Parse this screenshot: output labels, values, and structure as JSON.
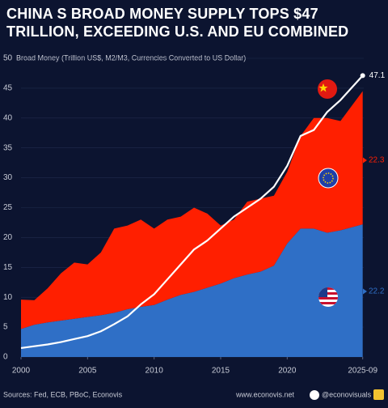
{
  "chart_data": {
    "type": "area",
    "title": "CHINA S BROAD MONEY SUPPLY TOPS $47 TRILLION, EXCEEDING U.S. AND EU COMBINED",
    "subtitle": "Broad Money (Trillion US$, M2/M3, Currencies Converted to US Dollar)",
    "source": "Sources: Fed, ECB, PBoC, Econovis",
    "website": "www.econovis.net",
    "handle": "@econovisuals",
    "x": [
      2000,
      2001,
      2002,
      2003,
      2004,
      2005,
      2006,
      2007,
      2008,
      2009,
      2010,
      2011,
      2012,
      2013,
      2014,
      2015,
      2016,
      2017,
      2018,
      2019,
      2020,
      2021,
      2022,
      2023,
      2024,
      2025.67
    ],
    "series": [
      {
        "type": "area",
        "color": "#2f6fc6",
        "values": [
          4.7,
          5.4,
          5.8,
          6.1,
          6.4,
          6.7,
          7.0,
          7.4,
          8.0,
          8.4,
          8.7,
          9.6,
          10.4,
          10.9,
          11.6,
          12.3,
          13.2,
          13.8,
          14.3,
          15.3,
          19.0,
          21.5,
          21.5,
          20.8,
          21.2,
          22.2
        ]
      },
      {
        "type": "area",
        "color": "#ff1f00",
        "values": [
          4.9,
          4.1,
          5.7,
          7.9,
          9.4,
          8.8,
          10.5,
          14.1,
          14.0,
          14.6,
          12.8,
          13.4,
          13.1,
          14.1,
          12.4,
          9.7,
          9.8,
          12.2,
          12.2,
          11.7,
          12.0,
          15.5,
          18.5,
          19.2,
          18.3,
          22.3
        ]
      },
      {
        "type": "line",
        "color": "#ffffff",
        "values": [
          1.5,
          1.8,
          2.1,
          2.5,
          3.0,
          3.5,
          4.3,
          5.5,
          6.8,
          8.8,
          10.5,
          13.0,
          15.5,
          18.0,
          19.5,
          21.5,
          23.5,
          25.0,
          26.5,
          28.5,
          32.0,
          37.0,
          38.0,
          41.0,
          43.0,
          47.1
        ]
      }
    ],
    "stacked": true,
    "xlim": [
      2000,
      2025.75
    ],
    "xticks": [
      2000,
      2005,
      2010,
      2015,
      2020,
      {
        "value": 2025.67,
        "label": "2025-09"
      }
    ],
    "ylim": [
      0,
      50
    ],
    "yticks": [
      0,
      5,
      10,
      15,
      20,
      25,
      30,
      35,
      40,
      45,
      50
    ],
    "grid": true
  }
}
